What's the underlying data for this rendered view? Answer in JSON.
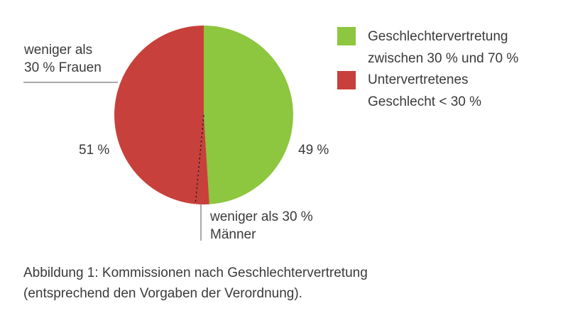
{
  "chart_data": {
    "type": "pie",
    "slices": [
      {
        "label": "Geschlechtervertretung zwischen 30 % und 70 %",
        "value": 49,
        "color": "#8dc63f"
      },
      {
        "label": "weniger als 30 % Männer",
        "value": 2.5,
        "color": "#c8403b"
      },
      {
        "label": "weniger als 30 % Frauen",
        "value": 48.5,
        "color": "#c8403b"
      }
    ],
    "value_labels": {
      "green": "49 %",
      "red": "51 %"
    },
    "annotations": {
      "women": [
        "weniger als",
        "30 % Frauen"
      ],
      "men": [
        "weniger als 30 %",
        "Männer"
      ]
    },
    "legend": [
      {
        "lines": [
          "Geschlechtervertretung",
          "zwischen 30 % und 70 %"
        ],
        "color": "#8dc63f"
      },
      {
        "lines": [
          "Untervertretenes",
          "Geschlecht < 30 %"
        ],
        "color": "#c8403b"
      }
    ],
    "legend_position": "right"
  },
  "caption": {
    "line1": "Abbildung 1: Kommissionen nach Geschlechtervertretung",
    "line2": "(entsprechend den Vorgaben der Verordnung)."
  }
}
